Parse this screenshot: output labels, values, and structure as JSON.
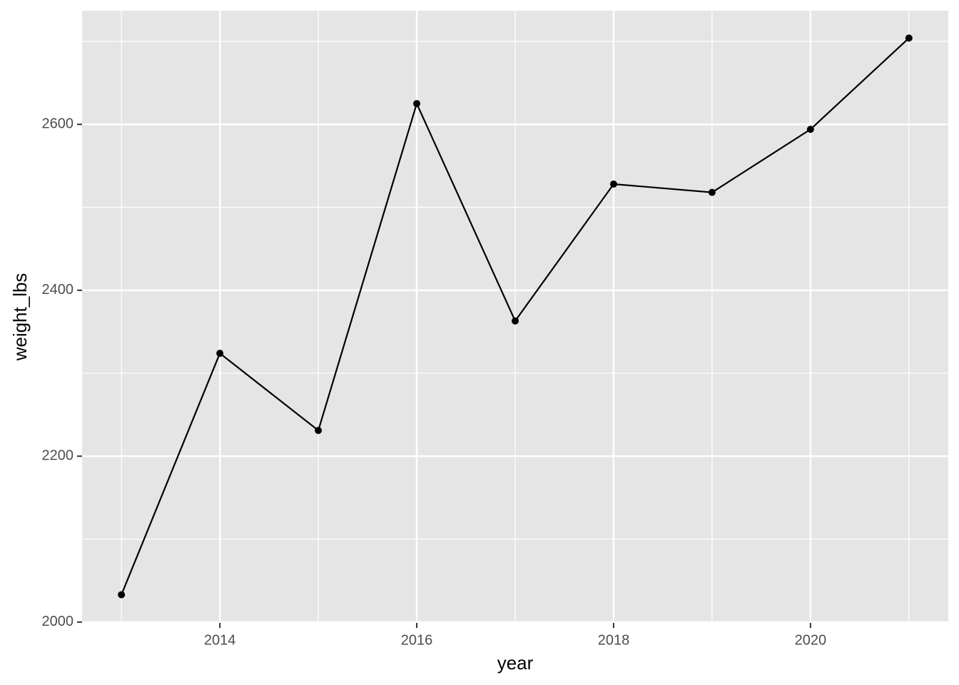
{
  "chart_data": {
    "type": "line",
    "x_label": "year",
    "y_label": "weight_lbs",
    "x": [
      2013,
      2014,
      2015,
      2016,
      2017,
      2018,
      2019,
      2020,
      2021
    ],
    "series": [
      {
        "name": "weight_lbs",
        "color": "#000000",
        "values": [
          2033,
          2324,
          2231,
          2625,
          2363,
          2528,
          2518,
          2594,
          2704
        ]
      }
    ],
    "xlim": [
      2012.6,
      2021.4
    ],
    "xticks": [
      2014,
      2016,
      2018,
      2020
    ],
    "xminor": [
      2013,
      2015,
      2017,
      2019,
      2021
    ],
    "ylim": [
      1999,
      2737
    ],
    "yticks": [
      2000,
      2200,
      2400,
      2600
    ],
    "yminor": [
      2100,
      2300,
      2500,
      2700
    ],
    "grid": true,
    "panel_color": "#e5e5e5",
    "points": true
  }
}
